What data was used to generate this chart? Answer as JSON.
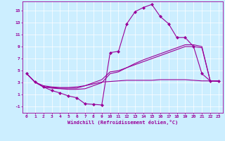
{
  "xlabel": "Windchill (Refroidissement éolien,°C)",
  "background_color": "#cceeff",
  "line_color": "#990099",
  "xlim": [
    -0.5,
    23.5
  ],
  "ylim": [
    -2.0,
    16.5
  ],
  "yticks": [
    -1,
    1,
    3,
    5,
    7,
    9,
    11,
    13,
    15
  ],
  "xticks": [
    0,
    1,
    2,
    3,
    4,
    5,
    6,
    7,
    8,
    9,
    10,
    11,
    12,
    13,
    14,
    15,
    16,
    17,
    18,
    19,
    20,
    21,
    22,
    23
  ],
  "series": [
    {
      "x": [
        0,
        1,
        2,
        3,
        4,
        5,
        6,
        7,
        8,
        9,
        10,
        11,
        12,
        13,
        14,
        15,
        16,
        17,
        18,
        19,
        20,
        21,
        22,
        23
      ],
      "y": [
        4.5,
        3.1,
        2.3,
        1.7,
        1.3,
        0.8,
        0.5,
        -0.5,
        -0.6,
        -0.7,
        8.0,
        8.2,
        12.8,
        14.8,
        15.5,
        16.0,
        14.0,
        12.8,
        10.5,
        10.5,
        9.0,
        4.5,
        3.3,
        3.3
      ],
      "with_markers": true
    },
    {
      "x": [
        0,
        1,
        2,
        3,
        4,
        5,
        6,
        7,
        8,
        9,
        10,
        11,
        12,
        13,
        14,
        15,
        16,
        17,
        18,
        19,
        20,
        21,
        22,
        23
      ],
      "y": [
        4.5,
        3.1,
        2.3,
        2.1,
        2.0,
        1.9,
        1.9,
        2.0,
        2.5,
        3.0,
        4.5,
        4.8,
        5.5,
        6.2,
        6.8,
        7.3,
        7.8,
        8.3,
        8.8,
        9.3,
        9.3,
        9.0,
        3.3,
        3.3
      ],
      "with_markers": false
    },
    {
      "x": [
        0,
        1,
        2,
        3,
        4,
        5,
        6,
        7,
        8,
        9,
        10,
        11,
        12,
        13,
        14,
        15,
        16,
        17,
        18,
        19,
        20,
        21,
        22,
        23
      ],
      "y": [
        4.5,
        3.1,
        2.3,
        2.2,
        2.1,
        2.1,
        2.1,
        2.5,
        3.0,
        3.5,
        4.8,
        5.0,
        5.5,
        6.0,
        6.5,
        7.0,
        7.5,
        8.0,
        8.5,
        9.0,
        9.0,
        8.8,
        3.3,
        3.3
      ],
      "with_markers": false
    },
    {
      "x": [
        0,
        1,
        2,
        3,
        4,
        5,
        6,
        7,
        8,
        9,
        10,
        11,
        12,
        13,
        14,
        15,
        16,
        17,
        18,
        19,
        20,
        21,
        22,
        23
      ],
      "y": [
        4.5,
        3.1,
        2.5,
        2.3,
        2.2,
        2.2,
        2.3,
        2.5,
        2.8,
        3.1,
        3.2,
        3.3,
        3.4,
        3.4,
        3.4,
        3.4,
        3.5,
        3.5,
        3.5,
        3.5,
        3.4,
        3.3,
        3.3,
        3.2
      ],
      "with_markers": false
    }
  ]
}
